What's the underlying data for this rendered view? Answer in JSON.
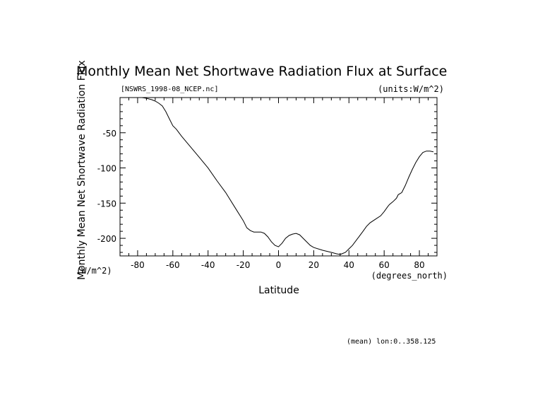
{
  "header": {
    "title": "Monthly Mean Net Shortwave Radiation Flux at Surface",
    "file_label": "[NSWRS_1998-08_NCEP.nc]",
    "units_label": "(units:W/m^2)"
  },
  "footer": {
    "note": "(mean) lon:0..358.125"
  },
  "chart_data": {
    "type": "line",
    "title": "Monthly Mean Net Shortwave Radiation Flux at Surface",
    "xlabel": "Latitude",
    "xunits": "(degrees_north)",
    "ylabel": "Monthly Mean Net Shortwave Radiation Flux",
    "yunits": "(W/m^2)",
    "xlim": [
      -90,
      90
    ],
    "ylim": [
      -225,
      0
    ],
    "x_ticks": [
      -80,
      -60,
      -40,
      -20,
      0,
      20,
      40,
      60,
      80
    ],
    "y_ticks": [
      -50,
      -100,
      -150,
      -200
    ],
    "x_tick_labels": [
      "-80",
      "-60",
      "-40",
      "-20",
      "0",
      "20",
      "40",
      "60",
      "80"
    ],
    "y_tick_labels": [
      "-50",
      "-100",
      "-150",
      "-200"
    ],
    "grid": false,
    "series": [
      {
        "x": [
          -77.5,
          -75,
          -72,
          -70,
          -68,
          -66,
          -64,
          -62,
          -60,
          -58,
          -55,
          -50,
          -45,
          -40,
          -35,
          -30,
          -25,
          -20,
          -18,
          -16,
          -14,
          -12,
          -10,
          -8,
          -6,
          -4,
          -2,
          0,
          2,
          4,
          6,
          8,
          10,
          12,
          14,
          16,
          18,
          20,
          25,
          30,
          33,
          35,
          36,
          38,
          40,
          42,
          45,
          48,
          50,
          52,
          55,
          58,
          60,
          62,
          63,
          65,
          67,
          68,
          70,
          72,
          74,
          76,
          78,
          80,
          82,
          84,
          86,
          88
        ],
        "values": [
          0,
          -1,
          -3,
          -5,
          -8,
          -12,
          -20,
          -30,
          -40,
          -45,
          -55,
          -70,
          -85,
          -100,
          -118,
          -135,
          -155,
          -175,
          -185,
          -189,
          -191,
          -191,
          -191,
          -193,
          -198,
          -205,
          -210,
          -212,
          -207,
          -200,
          -196,
          -194,
          -193,
          -195,
          -200,
          -205,
          -210,
          -213,
          -217,
          -220,
          -222,
          -223,
          -222,
          -220,
          -215,
          -210,
          -200,
          -190,
          -183,
          -178,
          -173,
          -168,
          -162,
          -155,
          -152,
          -148,
          -143,
          -138,
          -135,
          -125,
          -113,
          -102,
          -92,
          -84,
          -78,
          -76,
          -76,
          -77
        ]
      }
    ]
  }
}
